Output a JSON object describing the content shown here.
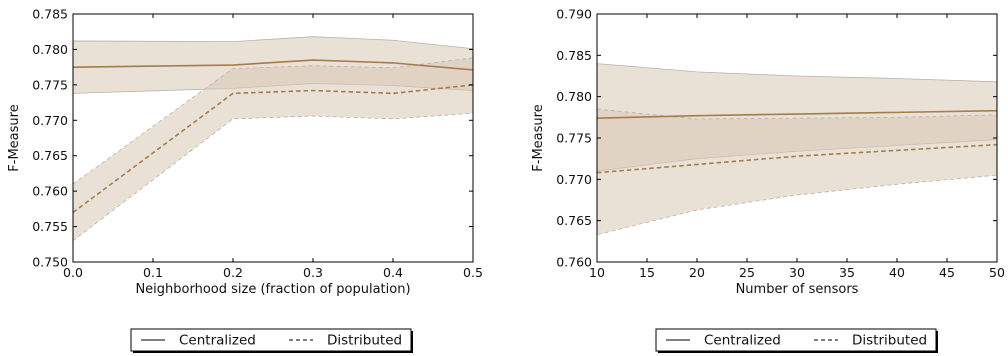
{
  "charts": [
    {
      "type": "line",
      "xlabel": "Neighborhood size (fraction of population)",
      "ylabel": "F-Measure",
      "xlim": [
        0.0,
        0.5
      ],
      "ylim": [
        0.75,
        0.785
      ],
      "xticks": [
        "0.0",
        "0.1",
        "0.2",
        "0.3",
        "0.4",
        "0.5"
      ],
      "xtick_values": [
        0.0,
        0.1,
        0.2,
        0.3,
        0.4,
        0.5
      ],
      "yticks": [
        "0.750",
        "0.755",
        "0.760",
        "0.765",
        "0.770",
        "0.775",
        "0.780",
        "0.785"
      ],
      "ytick_values": [
        0.75,
        0.755,
        0.76,
        0.765,
        0.77,
        0.775,
        0.78,
        0.785
      ],
      "x": [
        0.0,
        0.2,
        0.3,
        0.4,
        0.5
      ],
      "series": [
        {
          "name": "Centralized",
          "style": "solid",
          "values": [
            0.7775,
            0.7778,
            0.7785,
            0.7781,
            0.7771
          ],
          "band_upper": [
            0.7812,
            0.7811,
            0.7818,
            0.7813,
            0.7801
          ],
          "band_lower": [
            0.7738,
            0.7745,
            0.7752,
            0.7749,
            0.7742
          ]
        },
        {
          "name": "Distributed",
          "style": "dashed",
          "values": [
            0.757,
            0.7738,
            0.7742,
            0.7738,
            0.775
          ],
          "band_upper": [
            0.761,
            0.7773,
            0.7777,
            0.7774,
            0.7788
          ],
          "band_lower": [
            0.753,
            0.7702,
            0.7706,
            0.7702,
            0.771
          ]
        }
      ],
      "legend": [
        "Centralized",
        "Distributed"
      ],
      "legend_placement": "bottom-center",
      "grid": false
    },
    {
      "type": "line",
      "xlabel": "Number of sensors",
      "ylabel": "F-Measure",
      "xlim": [
        10,
        50
      ],
      "ylim": [
        0.76,
        0.79
      ],
      "xticks": [
        "10",
        "15",
        "20",
        "25",
        "30",
        "35",
        "40",
        "45",
        "50"
      ],
      "xtick_values": [
        10,
        15,
        20,
        25,
        30,
        35,
        40,
        45,
        50
      ],
      "yticks": [
        "0.760",
        "0.765",
        "0.770",
        "0.775",
        "0.780",
        "0.785",
        "0.790"
      ],
      "ytick_values": [
        0.76,
        0.765,
        0.77,
        0.775,
        0.78,
        0.785,
        0.79
      ],
      "x": [
        10,
        20,
        30,
        40,
        50
      ],
      "series": [
        {
          "name": "Centralized",
          "style": "solid",
          "values": [
            0.7774,
            0.7777,
            0.7779,
            0.7781,
            0.7783
          ],
          "band_upper": [
            0.784,
            0.783,
            0.7825,
            0.7822,
            0.7818
          ],
          "band_lower": [
            0.771,
            0.7725,
            0.7734,
            0.7741,
            0.7748
          ]
        },
        {
          "name": "Distributed",
          "style": "dashed",
          "values": [
            0.7708,
            0.7718,
            0.7728,
            0.7735,
            0.7742
          ],
          "band_upper": [
            0.7785,
            0.7773,
            0.7774,
            0.7775,
            0.7778
          ],
          "band_lower": [
            0.7633,
            0.7663,
            0.7681,
            0.7694,
            0.7705
          ]
        }
      ],
      "legend": [
        "Centralized",
        "Distributed"
      ],
      "legend_placement": "bottom-center",
      "grid": false
    }
  ],
  "colors": {
    "line": "#a67c4a",
    "band_fill": "#d9c8b4",
    "band_edge": "#b8b3ad",
    "axis": "#000000"
  }
}
